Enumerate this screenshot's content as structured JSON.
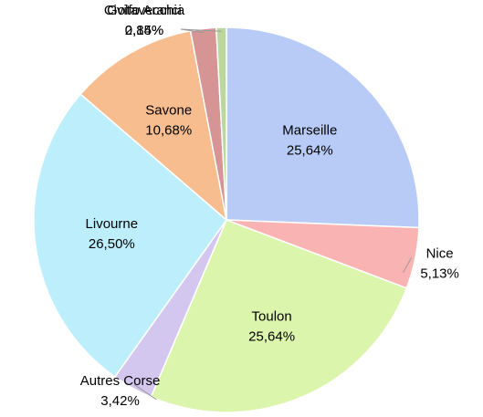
{
  "chart_data": {
    "type": "pie",
    "categories": [
      "Marseille",
      "Nice",
      "Toulon",
      "Autres Corse",
      "Livourne",
      "Savone",
      "Golfo Aranci",
      "Civitavecchia"
    ],
    "values": [
      25.64,
      5.13,
      25.64,
      3.42,
      26.5,
      10.68,
      2.14,
      0.85
    ],
    "value_labels": [
      "25,64%",
      "5,13%",
      "25,64%",
      "3,42%",
      "26,50%",
      "10,68%",
      "2,14%",
      "0,85%"
    ],
    "colors": [
      "#b7cbf6",
      "#f9b3b3",
      "#dcf5ac",
      "#d3c7ef",
      "#bdeefc",
      "#f7bd8f",
      "#d69494",
      "#bcd79e"
    ]
  }
}
